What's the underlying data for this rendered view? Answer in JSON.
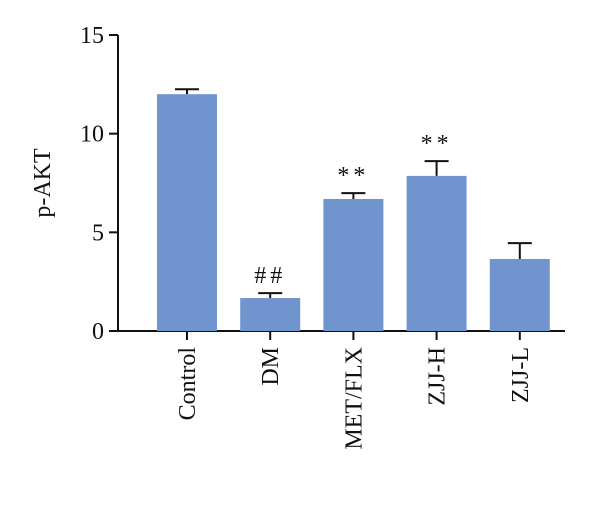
{
  "chart_data": {
    "type": "bar",
    "y_label": "p-AKT",
    "categories": [
      "Control",
      "DM",
      "MET/FLX",
      "ZJJ-H",
      "ZJJ-L"
    ],
    "values": [
      12.0,
      1.67,
      6.69,
      7.86,
      3.65
    ],
    "errors": [
      0.25,
      0.25,
      0.3,
      0.75,
      0.8
    ],
    "annotations": [
      null,
      "##",
      "**",
      "**",
      null
    ],
    "color": "#7094cd",
    "ylim": [
      0,
      15
    ],
    "yticks": [
      0,
      5,
      10,
      15
    ]
  }
}
